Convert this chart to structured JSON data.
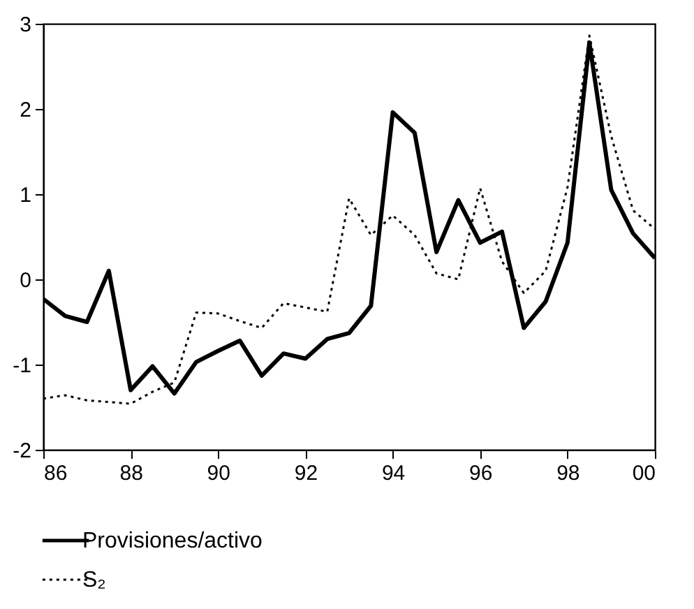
{
  "chart_data": {
    "type": "line",
    "x": [
      1986,
      1986.5,
      1987,
      1987.5,
      1988,
      1988.5,
      1989,
      1989.5,
      1990,
      1990.5,
      1991,
      1991.5,
      1992,
      1992.5,
      1993,
      1993.5,
      1994,
      1994.5,
      1995,
      1995.5,
      1996,
      1996.5,
      1997,
      1997.5,
      1998,
      1998.5,
      1999,
      1999.5,
      2000
    ],
    "series": [
      {
        "name": "Provisiones/activo",
        "color": "#000000",
        "line_style": "solid",
        "values": [
          -0.23,
          -0.43,
          -0.5,
          0.1,
          -1.3,
          -1.02,
          -1.34,
          -0.97,
          -0.84,
          -0.72,
          -1.13,
          -0.87,
          -0.93,
          -0.7,
          -0.63,
          -0.31,
          1.96,
          1.72,
          0.32,
          0.93,
          0.43,
          0.56,
          -0.57,
          -0.26,
          0.43,
          2.78,
          1.05,
          0.54,
          0.25
        ]
      },
      {
        "name": "S₂",
        "color": "#000000",
        "line_style": "dotted",
        "values": [
          -1.4,
          -1.36,
          -1.42,
          -1.44,
          -1.46,
          -1.32,
          -1.21,
          -0.39,
          -0.4,
          -0.49,
          -0.57,
          -0.28,
          -0.33,
          -0.38,
          0.95,
          0.52,
          0.75,
          0.52,
          0.07,
          0,
          1.07,
          0.21,
          -0.16,
          0.1,
          1.08,
          2.86,
          1.68,
          0.81,
          0.59
        ]
      }
    ],
    "xlim": [
      1986,
      2000
    ],
    "xticks": [
      {
        "value": 1986,
        "label": "86"
      },
      {
        "value": 1988,
        "label": "88"
      },
      {
        "value": 1990,
        "label": "90"
      },
      {
        "value": 1992,
        "label": "92"
      },
      {
        "value": 1994,
        "label": "94"
      },
      {
        "value": 1996,
        "label": "96"
      },
      {
        "value": 1998,
        "label": "98"
      },
      {
        "value": 2000,
        "label": "00"
      }
    ],
    "ylim": [
      -2,
      3
    ],
    "yticks": [
      -2,
      -1,
      0,
      1,
      2,
      3
    ],
    "grid": false,
    "legend": "bottom left",
    "marker": "none"
  }
}
